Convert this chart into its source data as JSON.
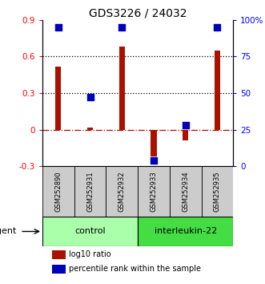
{
  "title": "GDS3226 / 24032",
  "samples": [
    "GSM252890",
    "GSM252931",
    "GSM252932",
    "GSM252933",
    "GSM252934",
    "GSM252935"
  ],
  "log10_ratio": [
    0.52,
    0.02,
    0.68,
    -0.22,
    -0.09,
    0.65
  ],
  "percentile_rank": [
    95,
    47,
    95,
    4,
    28,
    95
  ],
  "groups": [
    {
      "label": "control",
      "indices": [
        0,
        1,
        2
      ],
      "color": "#AAFFAA"
    },
    {
      "label": "interleukin-22",
      "indices": [
        3,
        4,
        5
      ],
      "color": "#44DD44"
    }
  ],
  "ylim_left": [
    -0.3,
    0.9
  ],
  "ylim_right": [
    0,
    100
  ],
  "yticks_left": [
    -0.3,
    0.0,
    0.3,
    0.6,
    0.9
  ],
  "yticks_right": [
    0,
    25,
    50,
    75,
    100
  ],
  "ytick_labels_right": [
    "0",
    "25",
    "50",
    "75",
    "100%"
  ],
  "hlines_dotted": [
    0.3,
    0.6
  ],
  "hline_dashdot": 0.0,
  "bar_color": "#AA1100",
  "dot_color": "#0000BB",
  "bar_width": 0.18,
  "dot_size": 28,
  "legend_items": [
    {
      "color": "#AA1100",
      "label": "log10 ratio"
    },
    {
      "color": "#0000BB",
      "label": "percentile rank within the sample"
    }
  ],
  "title_fontsize": 10,
  "tick_fontsize": 7.5,
  "sample_fontsize": 6,
  "group_fontsize": 8,
  "legend_fontsize": 7
}
